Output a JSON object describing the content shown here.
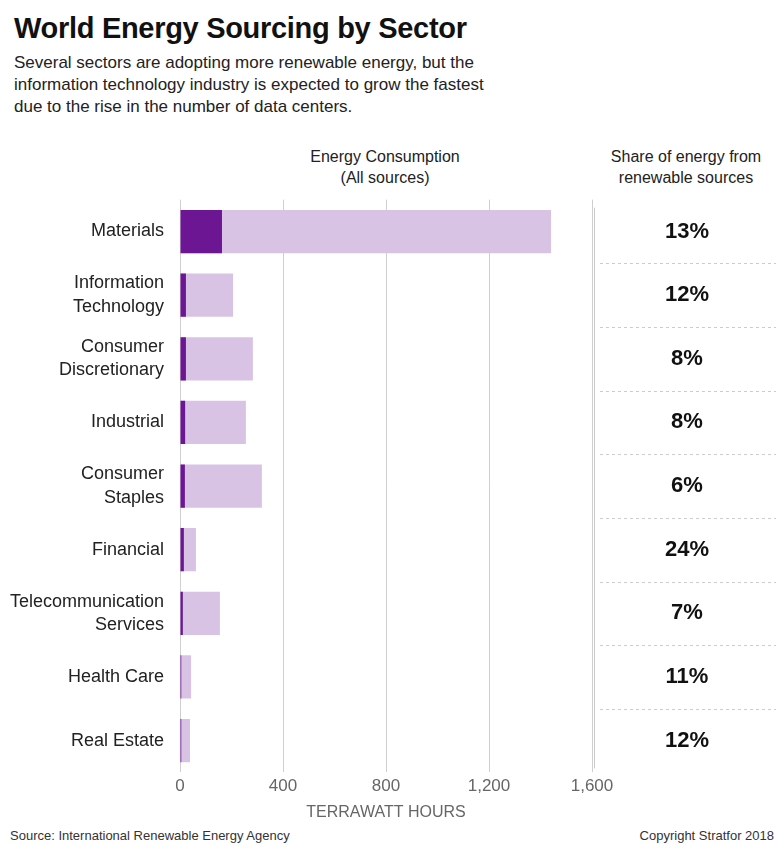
{
  "chart_data": {
    "type": "bar",
    "orientation": "horizontal",
    "title": "World Energy Sourcing by Sector",
    "subtitle": "Several sectors are adopting more renewable energy, but the information technology industry is expected to grow the fastest due to the rise in the number of data centers.",
    "value_header": "Energy Consumption",
    "value_subheader": "(All sources)",
    "x_label": "TERRAWATT HOURS",
    "source": "Source: International Renewable Energy Agency",
    "copyright": "Copyright Stratfor 2018",
    "categories": [
      "Materials",
      "Information Technology",
      "Consumer Discretionary",
      "Industrial",
      "Consumer Staples",
      "Financial",
      "Telecommunication Services",
      "Health Care",
      "Real Estate"
    ],
    "series": [
      {
        "color": "#d9c3e5",
        "values": [
          1441,
          206,
          283,
          256,
          318,
          62,
          155,
          43,
          39
        ]
      },
      {
        "color": "#6c1694",
        "values": [
          163,
          23,
          23,
          20,
          19,
          15,
          11,
          5,
          5
        ]
      }
    ],
    "renewable_share": {
      "title": "Share of energy from renewable sources",
      "values": [
        13,
        12,
        8,
        8,
        6,
        24,
        7,
        11,
        12
      ],
      "value_labels": [
        "13%",
        "12%",
        "8%",
        "8%",
        "6%",
        "24%",
        "7%",
        "11%",
        "12%"
      ]
    },
    "xlim": [
      0,
      1600
    ],
    "xticks": [
      0,
      400,
      800,
      {
        "value": 1200,
        "label": "1,200"
      },
      {
        "value": 1600,
        "label": "1,600"
      }
    ],
    "grid": true
  }
}
